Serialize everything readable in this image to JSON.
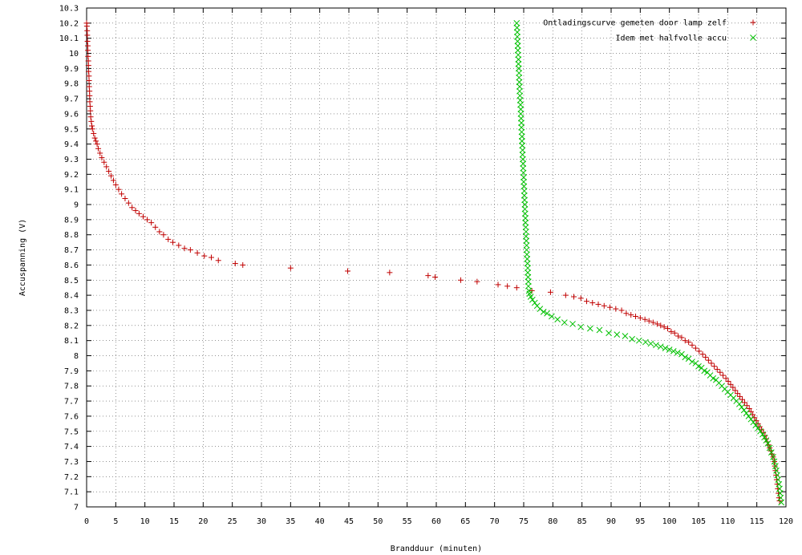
{
  "chart_data": {
    "type": "scatter",
    "title": "",
    "xlabel": "Brandduur (minuten)",
    "ylabel": "Accuspanning (V)",
    "xlim": [
      0,
      120
    ],
    "ylim": [
      7,
      10.3
    ],
    "x_ticks": [
      "0",
      "5",
      "10",
      "15",
      "20",
      "25",
      "30",
      "35",
      "40",
      "45",
      "50",
      "55",
      "60",
      "65",
      "70",
      "75",
      "80",
      "85",
      "90",
      "95",
      "100",
      "105",
      "110",
      "115",
      "120"
    ],
    "y_ticks": [
      "7",
      "7.1",
      "7.2",
      "7.3",
      "7.4",
      "7.5",
      "7.6",
      "7.7",
      "7.8",
      "7.9",
      "8",
      "8.1",
      "8.2",
      "8.3",
      "8.4",
      "8.5",
      "8.6",
      "8.7",
      "8.8",
      "8.9",
      "9",
      "9.1",
      "9.2",
      "9.3",
      "9.4",
      "9.5",
      "9.6",
      "9.7",
      "9.8",
      "9.9",
      "10",
      "10.1",
      "10.2",
      "10.3"
    ],
    "grid": true,
    "legend_position": "top-right",
    "series": [
      {
        "name": "Ontladingscurve gemeten door lamp zelf",
        "marker": "+",
        "color": "#c00000",
        "points": [
          [
            0.0,
            10.2
          ],
          [
            0.05,
            10.18
          ],
          [
            0.1,
            10.15
          ],
          [
            0.12,
            10.12
          ],
          [
            0.15,
            10.08
          ],
          [
            0.2,
            10.05
          ],
          [
            0.22,
            10.02
          ],
          [
            0.25,
            9.98
          ],
          [
            0.3,
            9.95
          ],
          [
            0.32,
            9.92
          ],
          [
            0.35,
            9.88
          ],
          [
            0.4,
            9.85
          ],
          [
            0.42,
            9.82
          ],
          [
            0.45,
            9.78
          ],
          [
            0.5,
            9.75
          ],
          [
            0.52,
            9.72
          ],
          [
            0.55,
            9.68
          ],
          [
            0.6,
            9.65
          ],
          [
            0.65,
            9.62
          ],
          [
            0.7,
            9.58
          ],
          [
            0.8,
            9.55
          ],
          [
            0.9,
            9.52
          ],
          [
            1.0,
            9.5
          ],
          [
            1.2,
            9.47
          ],
          [
            1.4,
            9.44
          ],
          [
            1.6,
            9.42
          ],
          [
            1.8,
            9.4
          ],
          [
            2.0,
            9.37
          ],
          [
            2.3,
            9.34
          ],
          [
            2.6,
            9.31
          ],
          [
            3.0,
            9.28
          ],
          [
            3.4,
            9.25
          ],
          [
            3.8,
            9.22
          ],
          [
            4.2,
            9.19
          ],
          [
            4.6,
            9.16
          ],
          [
            5.0,
            9.13
          ],
          [
            5.5,
            9.1
          ],
          [
            6.0,
            9.07
          ],
          [
            6.6,
            9.04
          ],
          [
            7.2,
            9.01
          ],
          [
            7.8,
            8.98
          ],
          [
            8.4,
            8.96
          ],
          [
            9.0,
            8.94
          ],
          [
            9.7,
            8.92
          ],
          [
            10.4,
            8.9
          ],
          [
            11.1,
            8.88
          ],
          [
            11.8,
            8.85
          ],
          [
            12.5,
            8.82
          ],
          [
            13.2,
            8.8
          ],
          [
            14.0,
            8.77
          ],
          [
            14.8,
            8.75
          ],
          [
            15.8,
            8.73
          ],
          [
            16.8,
            8.71
          ],
          [
            17.8,
            8.7
          ],
          [
            19.0,
            8.68
          ],
          [
            20.2,
            8.66
          ],
          [
            21.4,
            8.65
          ],
          [
            22.6,
            8.63
          ],
          [
            25.5,
            8.61
          ],
          [
            26.8,
            8.6
          ],
          [
            35.0,
            8.58
          ],
          [
            44.8,
            8.56
          ],
          [
            52.0,
            8.55
          ],
          [
            58.6,
            8.53
          ],
          [
            59.8,
            8.52
          ],
          [
            64.2,
            8.5
          ],
          [
            67.0,
            8.49
          ],
          [
            70.6,
            8.47
          ],
          [
            72.2,
            8.46
          ],
          [
            73.8,
            8.45
          ],
          [
            76.4,
            8.43
          ],
          [
            79.6,
            8.42
          ],
          [
            82.2,
            8.4
          ],
          [
            83.6,
            8.39
          ],
          [
            84.8,
            8.38
          ],
          [
            85.8,
            8.36
          ],
          [
            86.8,
            8.35
          ],
          [
            87.8,
            8.34
          ],
          [
            88.8,
            8.33
          ],
          [
            89.8,
            8.32
          ],
          [
            90.8,
            8.31
          ],
          [
            91.8,
            8.3
          ],
          [
            92.6,
            8.28
          ],
          [
            93.4,
            8.27
          ],
          [
            94.2,
            8.26
          ],
          [
            95.0,
            8.25
          ],
          [
            95.8,
            8.24
          ],
          [
            96.5,
            8.23
          ],
          [
            97.2,
            8.22
          ],
          [
            97.9,
            8.21
          ],
          [
            98.5,
            8.2
          ],
          [
            99.1,
            8.19
          ],
          [
            99.7,
            8.18
          ],
          [
            100.3,
            8.16
          ],
          [
            100.9,
            8.15
          ],
          [
            101.5,
            8.13
          ],
          [
            102.1,
            8.12
          ],
          [
            102.7,
            8.1
          ],
          [
            103.3,
            8.09
          ],
          [
            103.9,
            8.07
          ],
          [
            104.5,
            8.05
          ],
          [
            105.1,
            8.03
          ],
          [
            105.7,
            8.01
          ],
          [
            106.2,
            7.99
          ],
          [
            106.7,
            7.97
          ],
          [
            107.2,
            7.95
          ],
          [
            107.7,
            7.93
          ],
          [
            108.2,
            7.91
          ],
          [
            108.7,
            7.89
          ],
          [
            109.2,
            7.87
          ],
          [
            109.7,
            7.85
          ],
          [
            110.1,
            7.83
          ],
          [
            110.5,
            7.81
          ],
          [
            110.9,
            7.79
          ],
          [
            111.3,
            7.77
          ],
          [
            111.7,
            7.75
          ],
          [
            112.1,
            7.73
          ],
          [
            112.5,
            7.71
          ],
          [
            112.9,
            7.69
          ],
          [
            113.3,
            7.67
          ],
          [
            113.7,
            7.65
          ],
          [
            114.0,
            7.63
          ],
          [
            114.3,
            7.61
          ],
          [
            114.6,
            7.59
          ],
          [
            114.9,
            7.57
          ],
          [
            115.2,
            7.55
          ],
          [
            115.5,
            7.53
          ],
          [
            115.8,
            7.51
          ],
          [
            116.1,
            7.49
          ],
          [
            116.4,
            7.47
          ],
          [
            116.6,
            7.45
          ],
          [
            116.8,
            7.43
          ],
          [
            117.0,
            7.41
          ],
          [
            117.2,
            7.39
          ],
          [
            117.4,
            7.37
          ],
          [
            117.6,
            7.35
          ],
          [
            117.8,
            7.33
          ],
          [
            118.0,
            7.3
          ],
          [
            118.1,
            7.27
          ],
          [
            118.2,
            7.24
          ],
          [
            118.3,
            7.21
          ],
          [
            118.4,
            7.18
          ],
          [
            118.5,
            7.15
          ],
          [
            118.6,
            7.12
          ],
          [
            118.7,
            7.09
          ],
          [
            118.8,
            7.06
          ],
          [
            118.9,
            7.04
          ]
        ]
      },
      {
        "name": "Idem met halfvolle accu",
        "marker": "x",
        "color": "#00c000",
        "points": [
          [
            73.8,
            10.2
          ],
          [
            73.85,
            10.17
          ],
          [
            73.9,
            10.14
          ],
          [
            73.9,
            10.11
          ],
          [
            73.95,
            10.08
          ],
          [
            74.0,
            10.05
          ],
          [
            74.0,
            10.02
          ],
          [
            74.05,
            9.99
          ],
          [
            74.1,
            9.96
          ],
          [
            74.1,
            9.93
          ],
          [
            74.15,
            9.9
          ],
          [
            74.2,
            9.87
          ],
          [
            74.2,
            9.84
          ],
          [
            74.25,
            9.81
          ],
          [
            74.3,
            9.78
          ],
          [
            74.3,
            9.75
          ],
          [
            74.35,
            9.72
          ],
          [
            74.4,
            9.69
          ],
          [
            74.45,
            9.66
          ],
          [
            74.5,
            9.63
          ],
          [
            74.5,
            9.6
          ],
          [
            74.55,
            9.57
          ],
          [
            74.6,
            9.54
          ],
          [
            74.6,
            9.51
          ],
          [
            74.65,
            9.48
          ],
          [
            74.7,
            9.45
          ],
          [
            74.7,
            9.42
          ],
          [
            74.75,
            9.39
          ],
          [
            74.8,
            9.36
          ],
          [
            74.8,
            9.33
          ],
          [
            74.85,
            9.3
          ],
          [
            74.9,
            9.27
          ],
          [
            74.9,
            9.24
          ],
          [
            74.95,
            9.21
          ],
          [
            75.0,
            9.18
          ],
          [
            75.0,
            9.15
          ],
          [
            75.05,
            9.12
          ],
          [
            75.1,
            9.09
          ],
          [
            75.1,
            9.06
          ],
          [
            75.15,
            9.03
          ],
          [
            75.2,
            9.0
          ],
          [
            75.2,
            8.97
          ],
          [
            75.25,
            8.94
          ],
          [
            75.3,
            8.91
          ],
          [
            75.3,
            8.88
          ],
          [
            75.35,
            8.85
          ],
          [
            75.4,
            8.82
          ],
          [
            75.4,
            8.79
          ],
          [
            75.45,
            8.76
          ],
          [
            75.5,
            8.73
          ],
          [
            75.5,
            8.7
          ],
          [
            75.55,
            8.67
          ],
          [
            75.6,
            8.64
          ],
          [
            75.65,
            8.61
          ],
          [
            75.7,
            8.58
          ],
          [
            75.7,
            8.55
          ],
          [
            75.75,
            8.52
          ],
          [
            75.8,
            8.49
          ],
          [
            75.8,
            8.46
          ],
          [
            75.9,
            8.43
          ],
          [
            76.0,
            8.41
          ],
          [
            76.2,
            8.39
          ],
          [
            76.5,
            8.37
          ],
          [
            76.9,
            8.35
          ],
          [
            77.3,
            8.33
          ],
          [
            77.8,
            8.31
          ],
          [
            78.4,
            8.29
          ],
          [
            79.0,
            8.28
          ],
          [
            79.8,
            8.26
          ],
          [
            80.8,
            8.24
          ],
          [
            82.0,
            8.22
          ],
          [
            83.4,
            8.21
          ],
          [
            84.8,
            8.19
          ],
          [
            86.4,
            8.18
          ],
          [
            88.0,
            8.17
          ],
          [
            89.6,
            8.15
          ],
          [
            91.0,
            8.14
          ],
          [
            92.4,
            8.13
          ],
          [
            93.6,
            8.11
          ],
          [
            94.8,
            8.1
          ],
          [
            95.9,
            8.09
          ],
          [
            96.8,
            8.08
          ],
          [
            97.7,
            8.07
          ],
          [
            98.5,
            8.06
          ],
          [
            99.3,
            8.05
          ],
          [
            100.0,
            8.04
          ],
          [
            100.7,
            8.03
          ],
          [
            101.4,
            8.02
          ],
          [
            102.1,
            8.01
          ],
          [
            102.7,
            7.99
          ],
          [
            103.3,
            7.98
          ],
          [
            103.9,
            7.96
          ],
          [
            104.5,
            7.95
          ],
          [
            105.0,
            7.93
          ],
          [
            105.5,
            7.92
          ],
          [
            106.0,
            7.9
          ],
          [
            106.5,
            7.89
          ],
          [
            107.0,
            7.87
          ],
          [
            107.5,
            7.85
          ],
          [
            108.0,
            7.84
          ],
          [
            108.5,
            7.82
          ],
          [
            109.0,
            7.8
          ],
          [
            109.5,
            7.78
          ],
          [
            110.0,
            7.76
          ],
          [
            110.5,
            7.74
          ],
          [
            111.0,
            7.72
          ],
          [
            111.5,
            7.7
          ],
          [
            112.0,
            7.68
          ],
          [
            112.4,
            7.66
          ],
          [
            112.8,
            7.64
          ],
          [
            113.2,
            7.62
          ],
          [
            113.6,
            7.6
          ],
          [
            114.0,
            7.58
          ],
          [
            114.4,
            7.56
          ],
          [
            114.8,
            7.54
          ],
          [
            115.2,
            7.52
          ],
          [
            115.6,
            7.5
          ],
          [
            116.0,
            7.48
          ],
          [
            116.3,
            7.46
          ],
          [
            116.6,
            7.44
          ],
          [
            116.9,
            7.42
          ],
          [
            117.2,
            7.39
          ],
          [
            117.5,
            7.36
          ],
          [
            117.8,
            7.33
          ],
          [
            118.0,
            7.3
          ],
          [
            118.2,
            7.27
          ],
          [
            118.35,
            7.24
          ],
          [
            118.5,
            7.21
          ],
          [
            118.65,
            7.18
          ],
          [
            118.8,
            7.15
          ],
          [
            118.9,
            7.12
          ],
          [
            119.0,
            7.09
          ],
          [
            119.1,
            7.06
          ],
          [
            119.2,
            7.03
          ]
        ]
      }
    ]
  }
}
